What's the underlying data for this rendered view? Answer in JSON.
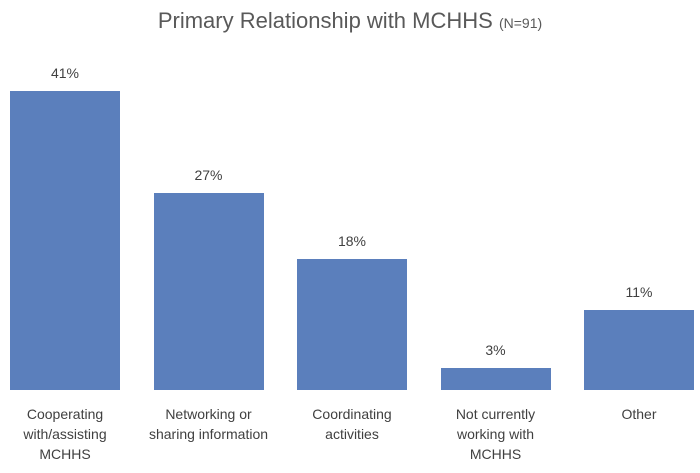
{
  "chart_data": {
    "type": "bar",
    "title": "Primary Relationship with MCHHS",
    "subtitle": "(N=91)",
    "categories": [
      "Cooperating with/assisting MCHHS",
      "Networking or sharing information",
      "Coordinating activities",
      "Not currently working with MCHHS",
      "Other"
    ],
    "values": [
      41,
      27,
      18,
      3,
      11
    ],
    "value_labels": [
      "41%",
      "27%",
      "18%",
      "3%",
      "11%"
    ],
    "color": "#5b7fbc"
  }
}
